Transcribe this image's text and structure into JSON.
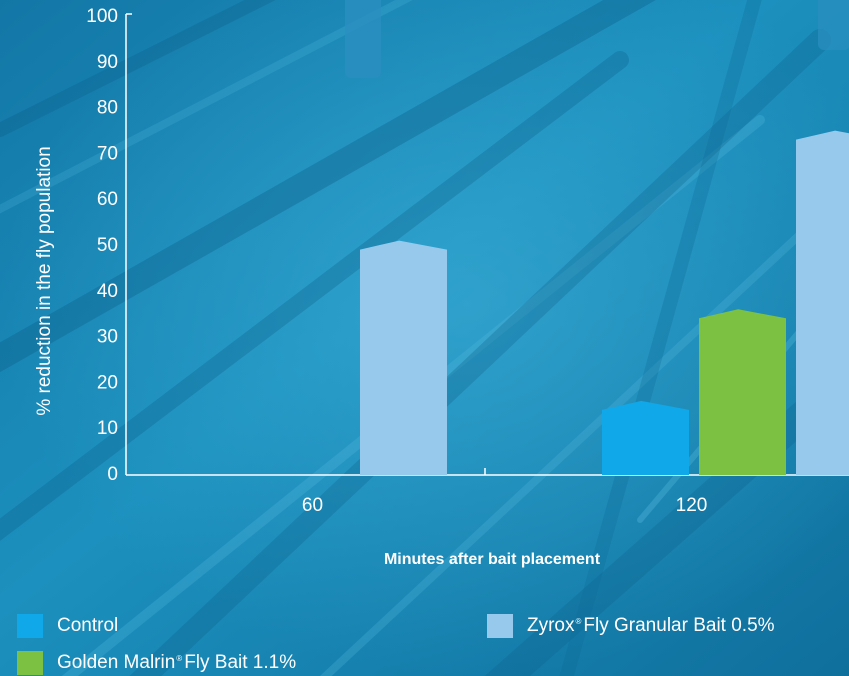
{
  "chart_data": {
    "type": "bar",
    "categories": [
      "60",
      "120"
    ],
    "series": [
      {
        "name": "Control",
        "color": "#10a8e8",
        "values": [
          0,
          15
        ]
      },
      {
        "name": "Golden Malrin® Fly Bait 1.1%",
        "color": "#7dc142",
        "values": [
          0,
          35
        ]
      },
      {
        "name": "Zyrox® Fly Granular Bait 0.5%",
        "color": "#97c9ec",
        "values": [
          50,
          74
        ]
      }
    ],
    "title": "",
    "xlabel": "Minutes after bait placement",
    "ylabel": "% reduction in the fly population",
    "ylim": [
      0,
      100
    ],
    "yticks": [
      0,
      10,
      20,
      30,
      40,
      50,
      60,
      70,
      80,
      90,
      100
    ],
    "grid": false,
    "legend_position": "bottom"
  },
  "legend": {
    "items": [
      {
        "name": "Control",
        "color": "#10a8e8"
      },
      {
        "name": "Golden Malrin",
        "mark": "®",
        "suffix": "Fly Bait 1.1%",
        "color": "#7dc142"
      },
      {
        "name": "Zyrox",
        "mark": "®",
        "suffix": "Fly Granular Bait 0.5%",
        "color": "#97c9ec"
      }
    ]
  }
}
